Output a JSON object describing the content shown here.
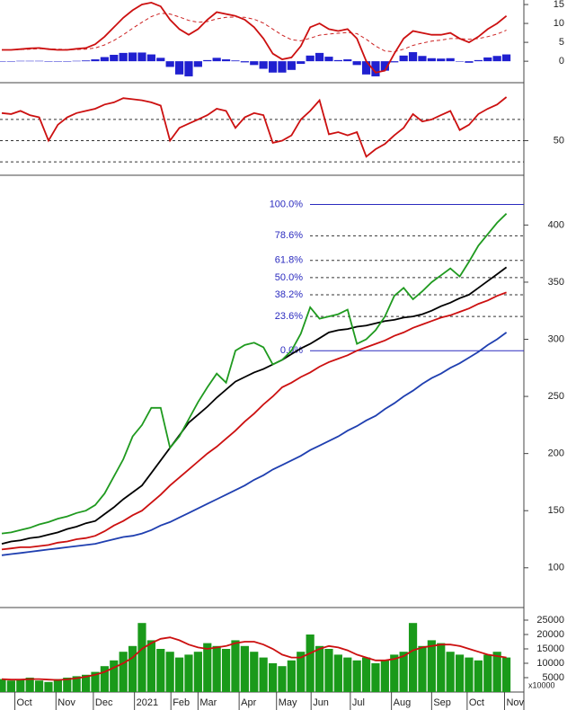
{
  "chart_data": [
    {
      "type": "line",
      "ylim": [
        -5.2,
        16.2
      ],
      "yticks": [
        0,
        5,
        10,
        15
      ],
      "series": [
        {
          "color": "#2020d0",
          "style": "bar",
          "values": [
            0,
            0,
            0.1,
            0.1,
            0.1,
            0,
            -0.1,
            0,
            0.1,
            0.2,
            0.5,
            1.1,
            1.7,
            2.2,
            2.3,
            2.3,
            1.8,
            0.9,
            -1.5,
            -3.5,
            -4,
            -1.5,
            0.3,
            0.9,
            0.5,
            0.2,
            -0.3,
            -1,
            -2,
            -3,
            -3,
            -2.3,
            -0.7,
            1.5,
            2.2,
            1.2,
            0.3,
            0.5,
            -1,
            -3.5,
            -4,
            -2.5,
            -0.3,
            1.5,
            2.4,
            1.4,
            0.8,
            0.7,
            0.8,
            0,
            -0.4,
            0.3,
            1,
            1.4,
            1.8
          ]
        },
        {
          "color": "#cc2020",
          "style": "dashed",
          "values": [
            3,
            3,
            3.1,
            3.2,
            3.3,
            3.3,
            3.2,
            3.1,
            3.1,
            3.2,
            3.5,
            4.3,
            5.5,
            7,
            8.7,
            10.3,
            11.8,
            12.7,
            12.5,
            11.7,
            10.8,
            10.3,
            10.5,
            11.2,
            11.6,
            11.7,
            11.6,
            11.1,
            10.1,
            8.5,
            6.9,
            5.7,
            5.4,
            6.1,
            6.9,
            7.2,
            7.4,
            7.6,
            7.3,
            5.8,
            4,
            2.7,
            2.5,
            3.2,
            4.2,
            4.8,
            5.3,
            5.6,
            6,
            6,
            5.8,
            6,
            6.5,
            7.2,
            8.2
          ]
        },
        {
          "color": "#cc1010",
          "style": "solid",
          "values": [
            3,
            3,
            3.2,
            3.4,
            3.5,
            3.2,
            3,
            3,
            3.3,
            3.5,
            4.5,
            6.5,
            9,
            11.5,
            13.5,
            15,
            15.5,
            14.5,
            11,
            8.5,
            7,
            8.5,
            11,
            13,
            12.5,
            12,
            11,
            9,
            6,
            2,
            0.5,
            1,
            4,
            9,
            10,
            8.5,
            8,
            8.5,
            6,
            0,
            -3,
            -2.5,
            2,
            6,
            8,
            7.5,
            7,
            7,
            7.5,
            6,
            5,
            6.5,
            8.5,
            10,
            12
          ]
        }
      ]
    },
    {
      "type": "line",
      "ylim": [
        20,
        102
      ],
      "yticks": [
        50
      ],
      "levels": [
        30,
        50,
        70
      ],
      "series": [
        {
          "color": "#cc1010",
          "style": "solid",
          "values": [
            76,
            75,
            78,
            74,
            72,
            50,
            65,
            72,
            76,
            78,
            80,
            84,
            86,
            90,
            89,
            88,
            86,
            83,
            50,
            62,
            66,
            70,
            74,
            80,
            78,
            62,
            72,
            76,
            74,
            48,
            50,
            55,
            70,
            78,
            88,
            56,
            58,
            55,
            58,
            35,
            42,
            47,
            55,
            62,
            75,
            68,
            70,
            74,
            78,
            60,
            65,
            75,
            80,
            84,
            91
          ]
        }
      ]
    },
    {
      "type": "line",
      "ylim": [
        66,
        442
      ],
      "yticks": [
        100,
        150,
        200,
        250,
        300,
        350,
        400
      ],
      "fib_levels": [
        {
          "label": "100.0%",
          "value": 418
        },
        {
          "label": "78.6%",
          "value": 390.6
        },
        {
          "label": "61.8%",
          "value": 369
        },
        {
          "label": "50.0%",
          "value": 354
        },
        {
          "label": "38.2%",
          "value": 339
        },
        {
          "label": "23.6%",
          "value": 320
        },
        {
          "label": "0.0%",
          "value": 290
        }
      ],
      "series": [
        {
          "color": "#1f3fb0",
          "style": "solid",
          "values": [
            111,
            112,
            113,
            114,
            115,
            116,
            117,
            118,
            119,
            120,
            121,
            123,
            125,
            127,
            128,
            130,
            133,
            137,
            140,
            144,
            148,
            152,
            156,
            160,
            164,
            168,
            172,
            177,
            181,
            186,
            190,
            194,
            198,
            203,
            207,
            211,
            215,
            220,
            224,
            229,
            233,
            239,
            244,
            250,
            255,
            261,
            266,
            270,
            275,
            279,
            284,
            289,
            295,
            300,
            306
          ]
        },
        {
          "color": "#cc1010",
          "style": "solid",
          "values": [
            116,
            117,
            118,
            118,
            119,
            120,
            122,
            123,
            125,
            126,
            128,
            132,
            137,
            141,
            146,
            150,
            157,
            164,
            172,
            179,
            186,
            193,
            200,
            206,
            213,
            220,
            228,
            235,
            243,
            250,
            258,
            262,
            267,
            271,
            276,
            280,
            283,
            286,
            290,
            293,
            296,
            299,
            303,
            306,
            310,
            313,
            316,
            319,
            321,
            324,
            327,
            331,
            334,
            338,
            341
          ]
        },
        {
          "color": "#000000",
          "style": "solid",
          "values": [
            121,
            123,
            124,
            126,
            127,
            129,
            131,
            134,
            136,
            139,
            141,
            147,
            153,
            160,
            166,
            172,
            183,
            194,
            205,
            216,
            227,
            234,
            241,
            249,
            256,
            263,
            267,
            271,
            274,
            278,
            282,
            287,
            292,
            296,
            301,
            306,
            308,
            309,
            311,
            312,
            314,
            316,
            317,
            319,
            320,
            322,
            325,
            329,
            332,
            336,
            339,
            345,
            351,
            357,
            363
          ]
        },
        {
          "color": "#1f9a1f",
          "style": "solid",
          "values": [
            130,
            131,
            133,
            135,
            138,
            140,
            143,
            145,
            148,
            150,
            155,
            165,
            180,
            195,
            215,
            225,
            240,
            240,
            205,
            215,
            230,
            245,
            258,
            270,
            262,
            290,
            295,
            297,
            293,
            278,
            282,
            290,
            305,
            328,
            318,
            320,
            322,
            326,
            296,
            300,
            308,
            320,
            338,
            345,
            335,
            342,
            350,
            356,
            362,
            355,
            368,
            382,
            392,
            402,
            410
          ]
        }
      ]
    },
    {
      "type": "bar",
      "ylim": [
        0,
        28750
      ],
      "yticks": [
        5000,
        10000,
        15000,
        20000,
        25000
      ],
      "axis_label": "x10000",
      "xlim": [
        -0.19,
        55.87
      ],
      "xticks": [
        {
          "value": 1.4,
          "label": "Oct"
        },
        {
          "value": 5.8,
          "label": "Nov"
        },
        {
          "value": 9.8,
          "label": "Dec"
        },
        {
          "value": 14.2,
          "label": "2021"
        },
        {
          "value": 18.1,
          "label": "Feb"
        },
        {
          "value": 21,
          "label": "Mar"
        },
        {
          "value": 25.4,
          "label": "Apr"
        },
        {
          "value": 29.4,
          "label": "May"
        },
        {
          "value": 33.1,
          "label": "Jun"
        },
        {
          "value": 37.3,
          "label": "Jul"
        },
        {
          "value": 41.7,
          "label": "Aug"
        },
        {
          "value": 46,
          "label": "Sep"
        },
        {
          "value": 49.8,
          "label": "Oct"
        },
        {
          "value": 53.8,
          "label": "Nov"
        }
      ],
      "series": [
        {
          "color": "#1a9a1a",
          "style": "bar",
          "values": [
            4500,
            4000,
            4500,
            5000,
            4000,
            3500,
            4500,
            5000,
            5500,
            6000,
            7000,
            9000,
            11000,
            14000,
            16000,
            24000,
            18000,
            15000,
            14000,
            12000,
            13000,
            14000,
            17000,
            16000,
            15000,
            18000,
            16000,
            14000,
            12000,
            10000,
            9000,
            11000,
            14000,
            20000,
            16000,
            15000,
            13000,
            12000,
            11000,
            12000,
            10000,
            11000,
            13000,
            14000,
            24000,
            16000,
            18000,
            17000,
            14000,
            13000,
            12000,
            11000,
            13000,
            14000,
            12000
          ]
        },
        {
          "color": "#cc1010",
          "style": "solid",
          "values": [
            4500,
            4300,
            4300,
            4500,
            4500,
            4300,
            4200,
            4400,
            4800,
            5300,
            6000,
            7000,
            8500,
            10000,
            12000,
            15000,
            17000,
            18500,
            19000,
            18000,
            16500,
            15500,
            15000,
            15500,
            16000,
            17000,
            17500,
            17500,
            16500,
            15000,
            13000,
            12000,
            12000,
            13500,
            15000,
            16000,
            15500,
            14500,
            13000,
            12000,
            11000,
            11000,
            11500,
            12500,
            14500,
            15500,
            16000,
            16500,
            16500,
            16000,
            15000,
            14000,
            13000,
            12500,
            12000
          ]
        }
      ]
    }
  ]
}
